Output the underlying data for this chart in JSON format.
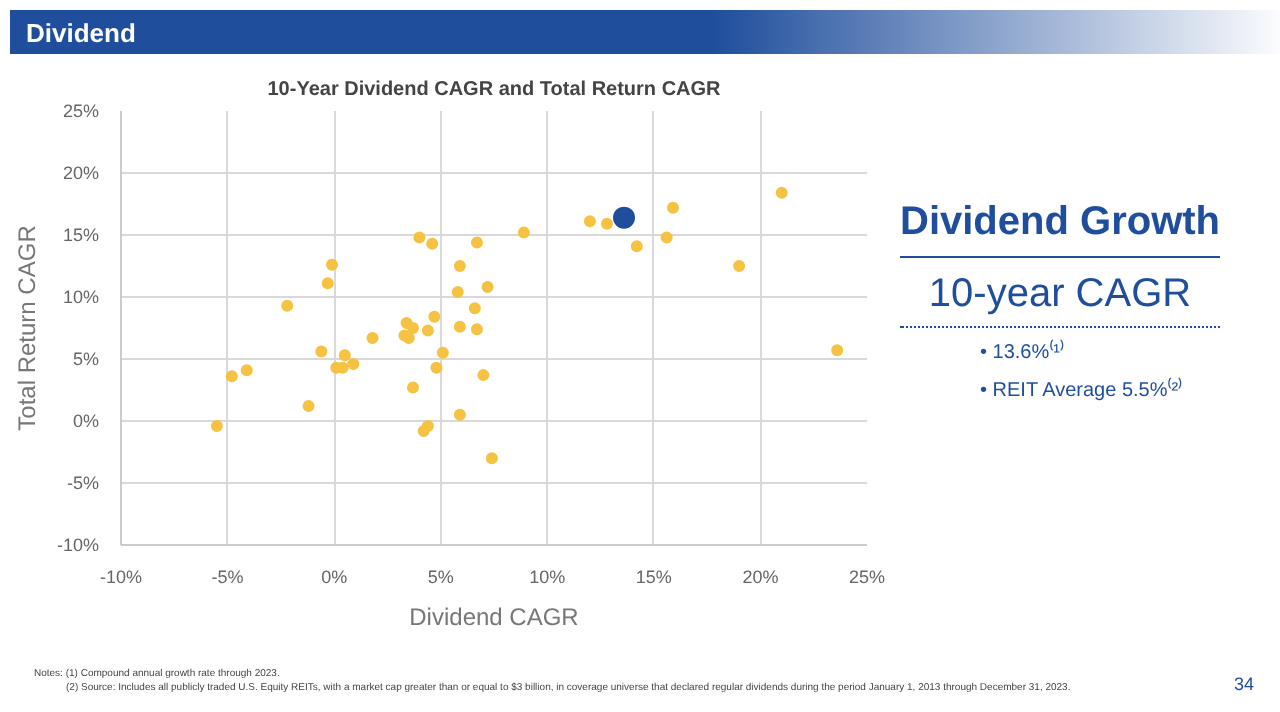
{
  "chart_data": {
    "type": "scatter",
    "title": "10-Year Dividend CAGR and Total Return CAGR",
    "xlabel": "Dividend CAGR",
    "ylabel": "Total Return CAGR",
    "xlim": [
      -10,
      25
    ],
    "ylim": [
      -10,
      25
    ],
    "xticks": [
      {
        "value": -10,
        "label": "-10%"
      },
      {
        "value": -5,
        "label": "-5%"
      },
      {
        "value": 0,
        "label": "0%"
      },
      {
        "value": 5,
        "label": "5%"
      },
      {
        "value": 10,
        "label": "10%"
      },
      {
        "value": 15,
        "label": "15%"
      },
      {
        "value": 20,
        "label": "20%"
      },
      {
        "value": 25,
        "label": "25%"
      }
    ],
    "yticks": [
      {
        "value": -10,
        "label": "-10%"
      },
      {
        "value": -5,
        "label": "-5%"
      },
      {
        "value": 0,
        "label": "0%"
      },
      {
        "value": 5,
        "label": "5%"
      },
      {
        "value": 10,
        "label": "10%"
      },
      {
        "value": 15,
        "label": "15%"
      },
      {
        "value": 20,
        "label": "20%"
      },
      {
        "value": 25,
        "label": "25%"
      }
    ],
    "grid": true,
    "marker": "circle",
    "series": [
      {
        "color": "#f5c242",
        "x": [
          -5.5,
          -4.8,
          -4.1,
          -2.2,
          -1.2,
          -0.6,
          -0.3,
          -0.1,
          0.1,
          0.4,
          0.5,
          0.9,
          1.8,
          4.0,
          4.6,
          3.4,
          3.7,
          3.3,
          3.5,
          3.7,
          4.4,
          4.7,
          4.8,
          5.1,
          4.2,
          4.4,
          5.9,
          5.8,
          5.9,
          5.9,
          6.7,
          6.6,
          6.7,
          7.0,
          7.2,
          7.4,
          8.9,
          12.0,
          12.8,
          14.2,
          15.6,
          15.9,
          19.0,
          21.0,
          23.6
        ],
        "values": [
          -0.4,
          3.6,
          4.1,
          9.3,
          1.2,
          5.6,
          11.1,
          12.6,
          4.3,
          4.3,
          5.3,
          4.6,
          6.7,
          14.8,
          14.3,
          7.9,
          7.5,
          6.9,
          6.7,
          2.7,
          7.3,
          8.4,
          4.3,
          5.5,
          -0.8,
          -0.4,
          12.5,
          10.4,
          7.6,
          0.5,
          14.4,
          9.1,
          7.4,
          3.7,
          10.8,
          -3.0,
          15.2,
          16.1,
          15.9,
          14.1,
          14.8,
          17.2,
          12.5,
          18.4,
          5.7
        ]
      },
      {
        "color": "#1f4e9c",
        "x": [
          13.6
        ],
        "values": [
          16.4
        ]
      }
    ],
    "annotations": [
      "Dividend",
      "Dividend Growth",
      "10-year CAGR",
      "• 13.6%⁽¹⁾",
      "• REIT Average 5.5%⁽²⁾",
      "Notes: (1) Compound annual growth rate through 2023.",
      "(2) Source: Includes all publicly traded U.S. Equity REITs, with a market cap greater than or equal to $3 billion, in coverage universe that declared regular dividends during the period January 1, 2013 through December 31, 2023.",
      "34"
    ]
  }
}
